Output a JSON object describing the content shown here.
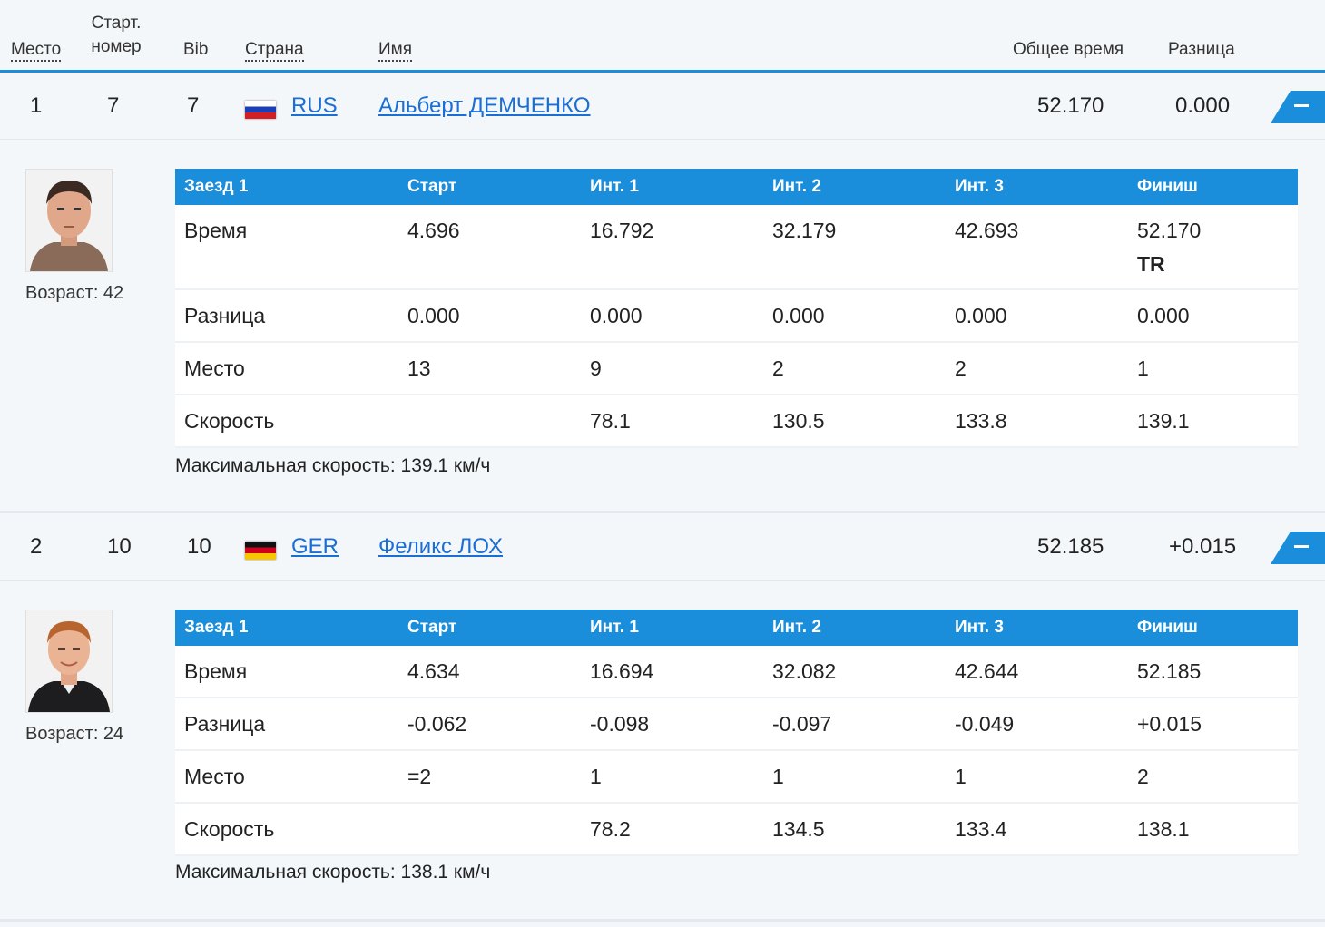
{
  "header": {
    "place": "Место",
    "start_number_line1": "Старт.",
    "start_number_line2": "номер",
    "bib": "Bib",
    "country": "Страна",
    "name": "Имя",
    "total_time": "Общее время",
    "difference": "Разница"
  },
  "colors": {
    "accent": "#1a8ddb",
    "link": "#1b6ed4"
  },
  "athletes": [
    {
      "place": "1",
      "start_number": "7",
      "bib": "7",
      "country": "RUS",
      "flag": "flag-russia-icon",
      "name": "Альберт ДЕМЧЕНКО",
      "total_time": "52.170",
      "difference": "0.000",
      "age_label": "Возраст: 42",
      "max_speed": "Максимальная скорость: 139.1 км/ч",
      "splits_header": [
        "Заезд 1",
        "Старт",
        "Инт. 1",
        "Инт. 2",
        "Инт. 3",
        "Финиш"
      ],
      "rows": [
        {
          "label": "Время",
          "cells": [
            "4.696",
            "16.792",
            "32.179",
            "42.693",
            "52.170"
          ],
          "note": "TR"
        },
        {
          "label": "Разница",
          "cells": [
            "0.000",
            "0.000",
            "0.000",
            "0.000",
            "0.000"
          ]
        },
        {
          "label": "Место",
          "cells": [
            "13",
            "9",
            "2",
            "2",
            "1"
          ]
        },
        {
          "label": "Скорость",
          "cells": [
            "",
            "78.1",
            "130.5",
            "133.8",
            "139.1"
          ]
        }
      ]
    },
    {
      "place": "2",
      "start_number": "10",
      "bib": "10",
      "country": "GER",
      "flag": "flag-germany-icon",
      "name": "Феликс ЛОХ",
      "total_time": "52.185",
      "difference": "+0.015",
      "age_label": "Возраст: 24",
      "max_speed": "Максимальная скорость: 138.1 км/ч",
      "splits_header": [
        "Заезд 1",
        "Старт",
        "Инт. 1",
        "Инт. 2",
        "Инт. 3",
        "Финиш"
      ],
      "rows": [
        {
          "label": "Время",
          "cells": [
            "4.634",
            "16.694",
            "32.082",
            "42.644",
            "52.185"
          ]
        },
        {
          "label": "Разница",
          "cells": [
            "-0.062",
            "-0.098",
            "-0.097",
            "-0.049",
            "+0.015"
          ]
        },
        {
          "label": "Место",
          "cells": [
            "=2",
            "1",
            "1",
            "1",
            "2"
          ]
        },
        {
          "label": "Скорость",
          "cells": [
            "",
            "78.2",
            "134.5",
            "133.4",
            "138.1"
          ]
        }
      ]
    }
  ]
}
